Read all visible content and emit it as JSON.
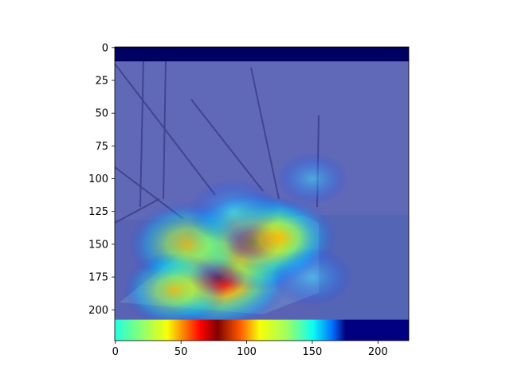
{
  "chart_data": {
    "type": "heatmap",
    "title": "",
    "xlabel": "",
    "ylabel": "",
    "xlim": [
      0,
      223
    ],
    "ylim": [
      223,
      0
    ],
    "x_ticks": [
      0,
      50,
      100,
      150,
      200
    ],
    "y_ticks": [
      0,
      25,
      50,
      75,
      100,
      125,
      150,
      175,
      200
    ],
    "colormap": "jet",
    "grid": false,
    "legend": "none",
    "image_rows": 224,
    "image_cols": 224,
    "background": {
      "description": "harbor photo with sailboat masts and a moored boat, dimmed under heatmap overlay",
      "letterbox_top_rows": [
        0,
        10
      ],
      "letterbox_bottom_rows": [
        208,
        223
      ]
    },
    "hotspots": [
      {
        "x": 78,
        "y": 175,
        "intensity": 1.0
      },
      {
        "x": 105,
        "y": 148,
        "intensity": 0.95
      },
      {
        "x": 55,
        "y": 150,
        "intensity": 0.75
      },
      {
        "x": 125,
        "y": 145,
        "intensity": 0.7
      },
      {
        "x": 90,
        "y": 125,
        "intensity": 0.45
      },
      {
        "x": 45,
        "y": 185,
        "intensity": 0.6
      },
      {
        "x": 150,
        "y": 175,
        "intensity": 0.35
      },
      {
        "x": 150,
        "y": 100,
        "intensity": 0.25
      }
    ],
    "bottom_band_profile": [
      {
        "x": 0,
        "value": 0.3
      },
      {
        "x": 40,
        "value": 0.55
      },
      {
        "x": 65,
        "value": 0.85
      },
      {
        "x": 78,
        "value": 1.0
      },
      {
        "x": 95,
        "value": 0.75
      },
      {
        "x": 110,
        "value": 0.55
      },
      {
        "x": 130,
        "value": 0.45
      },
      {
        "x": 150,
        "value": 0.28
      },
      {
        "x": 165,
        "value": 0.1
      },
      {
        "x": 175,
        "value": 0.02
      },
      {
        "x": 223,
        "value": 0.0
      }
    ]
  }
}
